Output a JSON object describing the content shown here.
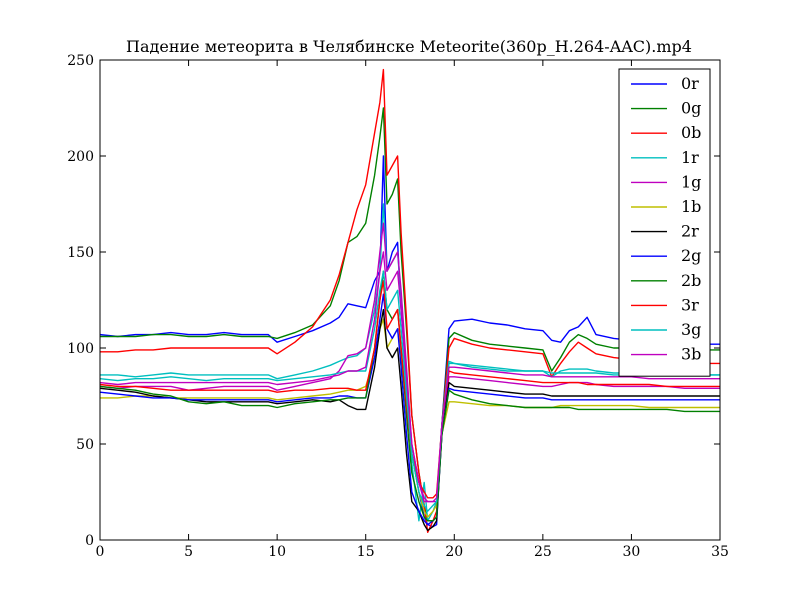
{
  "chart_data": {
    "type": "line",
    "title": "Падение метеорита в Челябинске Meteorite(360p_H.264-AAC).mp4",
    "xlabel": "",
    "ylabel": "",
    "xlim": [
      0,
      35
    ],
    "ylim": [
      0,
      250
    ],
    "x_ticks": [
      0,
      5,
      10,
      15,
      20,
      25,
      30,
      35
    ],
    "y_ticks": [
      0,
      50,
      100,
      150,
      200,
      250
    ],
    "grid": false,
    "legend": "top-right",
    "x": [
      0,
      1,
      2,
      3,
      4,
      5,
      6,
      7,
      8,
      9,
      9.5,
      10,
      11,
      12,
      13,
      13.5,
      14,
      14.5,
      15,
      15.5,
      15.8,
      16,
      16.2,
      16.5,
      16.8,
      17,
      17.3,
      17.6,
      18,
      18.3,
      18.5,
      18.8,
      19,
      19.3,
      19.7,
      20,
      21,
      22,
      23,
      24,
      25,
      25.5,
      26,
      26.5,
      27,
      27.5,
      28,
      29,
      30,
      31,
      32,
      33,
      34,
      35
    ],
    "series": [
      {
        "name": "0r",
        "color": "#0000ff",
        "values": [
          107,
          106,
          107,
          107,
          108,
          107,
          107,
          108,
          107,
          107,
          107,
          103,
          106,
          109,
          113,
          116,
          123,
          122,
          121,
          135,
          140,
          200,
          140,
          150,
          155,
          120,
          85,
          45,
          25,
          12,
          8,
          7,
          8,
          60,
          110,
          114,
          115,
          113,
          112,
          110,
          109,
          104,
          103,
          109,
          111,
          116,
          107,
          105,
          104,
          105,
          103,
          103,
          102,
          102
        ]
      },
      {
        "name": "0g",
        "color": "#008000",
        "values": [
          106,
          106,
          106,
          107,
          107,
          106,
          106,
          107,
          106,
          106,
          106,
          105,
          108,
          112,
          122,
          135,
          155,
          158,
          165,
          190,
          210,
          225,
          175,
          180,
          188,
          150,
          110,
          65,
          35,
          18,
          10,
          10,
          12,
          60,
          105,
          108,
          104,
          102,
          101,
          100,
          99,
          88,
          95,
          103,
          107,
          105,
          102,
          100,
          100,
          100,
          99,
          99,
          99,
          99
        ]
      },
      {
        "name": "0b",
        "color": "#ff0000",
        "values": [
          98,
          98,
          99,
          99,
          100,
          100,
          100,
          100,
          100,
          100,
          100,
          97,
          103,
          111,
          125,
          138,
          155,
          172,
          185,
          212,
          228,
          245,
          190,
          195,
          200,
          160,
          115,
          65,
          35,
          18,
          4,
          10,
          15,
          60,
          100,
          105,
          102,
          100,
          99,
          98,
          97,
          85,
          92,
          98,
          103,
          100,
          97,
          95,
          94,
          94,
          93,
          92,
          92,
          92
        ]
      },
      {
        "name": "1r",
        "color": "#00bfbf",
        "values": [
          86,
          86,
          85,
          86,
          87,
          86,
          86,
          86,
          86,
          86,
          86,
          84,
          86,
          88,
          91,
          93,
          95,
          96,
          100,
          120,
          140,
          175,
          140,
          145,
          150,
          125,
          80,
          40,
          10,
          30,
          10,
          15,
          20,
          60,
          92,
          92,
          90,
          89,
          88,
          88,
          88,
          85,
          88,
          89,
          89,
          89,
          88,
          87,
          87,
          87,
          86,
          86,
          86,
          86
        ]
      },
      {
        "name": "1g",
        "color": "#bf00bf",
        "values": [
          80,
          79,
          80,
          80,
          80,
          78,
          79,
          80,
          80,
          80,
          80,
          78,
          80,
          82,
          84,
          88,
          96,
          97,
          100,
          125,
          150,
          165,
          140,
          145,
          150,
          130,
          90,
          50,
          30,
          20,
          20,
          20,
          20,
          60,
          85,
          85,
          84,
          83,
          82,
          81,
          80,
          80,
          81,
          82,
          82,
          82,
          81,
          80,
          80,
          80,
          80,
          79,
          79,
          79
        ]
      },
      {
        "name": "1b",
        "color": "#bfbf00",
        "values": [
          74,
          74,
          75,
          75,
          74,
          74,
          74,
          74,
          74,
          74,
          74,
          73,
          74,
          75,
          76,
          77,
          78,
          78,
          80,
          95,
          110,
          115,
          100,
          105,
          110,
          95,
          70,
          45,
          25,
          15,
          12,
          15,
          18,
          55,
          72,
          72,
          71,
          70,
          70,
          69,
          69,
          69,
          70,
          70,
          70,
          70,
          70,
          70,
          70,
          69,
          69,
          69,
          69,
          69
        ]
      },
      {
        "name": "2r",
        "color": "#000000",
        "values": [
          79,
          78,
          77,
          75,
          74,
          73,
          72,
          72,
          72,
          72,
          72,
          71,
          72,
          73,
          72,
          73,
          70,
          68,
          68,
          90,
          110,
          120,
          100,
          95,
          100,
          80,
          45,
          20,
          15,
          8,
          5,
          7,
          10,
          55,
          82,
          80,
          79,
          78,
          77,
          76,
          76,
          75,
          75,
          75,
          75,
          75,
          75,
          75,
          75,
          75,
          75,
          75,
          75,
          75
        ]
      },
      {
        "name": "2g",
        "color": "#0000ff",
        "values": [
          77,
          76,
          75,
          74,
          74,
          73,
          73,
          73,
          73,
          73,
          73,
          72,
          73,
          74,
          74,
          75,
          75,
          74,
          74,
          95,
          115,
          128,
          110,
          105,
          110,
          90,
          55,
          25,
          15,
          10,
          8,
          10,
          12,
          55,
          79,
          78,
          77,
          76,
          75,
          74,
          74,
          73,
          73,
          73,
          73,
          73,
          73,
          73,
          73,
          73,
          73,
          73,
          73,
          73
        ]
      },
      {
        "name": "2b",
        "color": "#008000",
        "values": [
          80,
          79,
          78,
          76,
          75,
          72,
          71,
          72,
          70,
          70,
          70,
          69,
          71,
          72,
          73,
          73,
          74,
          74,
          74,
          100,
          125,
          140,
          120,
          115,
          120,
          100,
          65,
          35,
          20,
          12,
          10,
          10,
          12,
          55,
          78,
          76,
          73,
          71,
          70,
          69,
          69,
          69,
          69,
          69,
          68,
          68,
          68,
          68,
          68,
          68,
          68,
          67,
          67,
          67
        ]
      },
      {
        "name": "3r",
        "color": "#ff0000",
        "values": [
          81,
          80,
          80,
          79,
          78,
          78,
          78,
          78,
          78,
          78,
          78,
          77,
          78,
          78,
          79,
          79,
          79,
          78,
          78,
          100,
          125,
          135,
          110,
          115,
          120,
          100,
          70,
          45,
          30,
          25,
          22,
          22,
          24,
          60,
          88,
          87,
          86,
          85,
          84,
          83,
          82,
          82,
          82,
          82,
          82,
          81,
          81,
          81,
          81,
          81,
          80,
          80,
          80,
          80
        ]
      },
      {
        "name": "3g",
        "color": "#00bfbf",
        "values": [
          84,
          83,
          84,
          84,
          85,
          84,
          83,
          84,
          84,
          84,
          84,
          83,
          84,
          85,
          86,
          87,
          88,
          88,
          88,
          110,
          130,
          140,
          120,
          125,
          130,
          110,
          75,
          45,
          25,
          18,
          15,
          18,
          20,
          60,
          93,
          92,
          91,
          90,
          89,
          88,
          88,
          87,
          87,
          87,
          87,
          87,
          87,
          86,
          86,
          86,
          86,
          86,
          86,
          86
        ]
      },
      {
        "name": "3b",
        "color": "#bf00bf",
        "values": [
          82,
          81,
          82,
          82,
          82,
          82,
          82,
          82,
          82,
          82,
          82,
          81,
          82,
          83,
          85,
          86,
          88,
          88,
          90,
          115,
          140,
          150,
          130,
          135,
          140,
          120,
          85,
          50,
          30,
          22,
          20,
          20,
          22,
          60,
          90,
          90,
          89,
          88,
          87,
          86,
          86,
          85,
          85,
          85,
          85,
          85,
          85,
          85,
          85,
          84,
          84,
          84,
          84,
          84
        ]
      }
    ]
  }
}
